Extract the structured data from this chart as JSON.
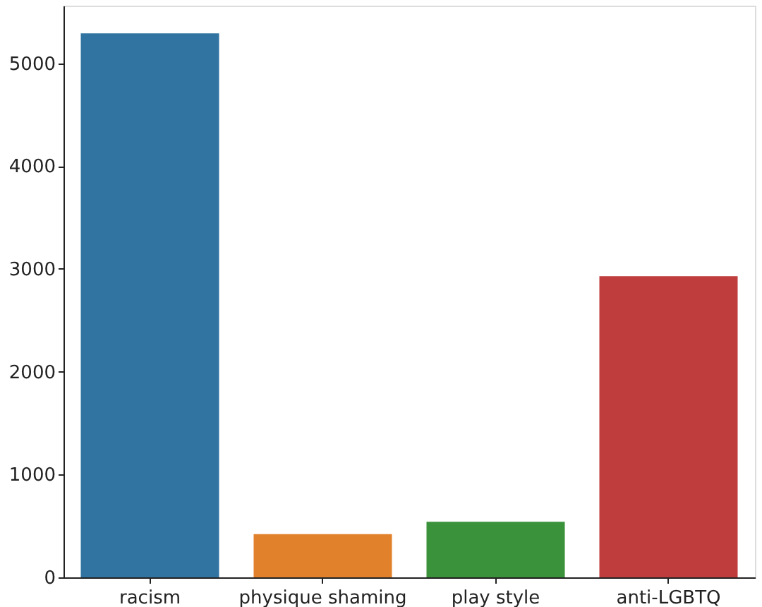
{
  "chart_data": {
    "type": "bar",
    "categories": [
      "racism",
      "physique shaming",
      "play style",
      "anti-LGBTQ"
    ],
    "values": [
      5290,
      420,
      540,
      2930
    ],
    "colors": [
      "#3274a1",
      "#e1812c",
      "#3a923a",
      "#c03d3e"
    ],
    "ylim": [
      0,
      5560
    ],
    "yticks": [
      0,
      1000,
      2000,
      3000,
      4000,
      5000
    ],
    "grid": false
  }
}
